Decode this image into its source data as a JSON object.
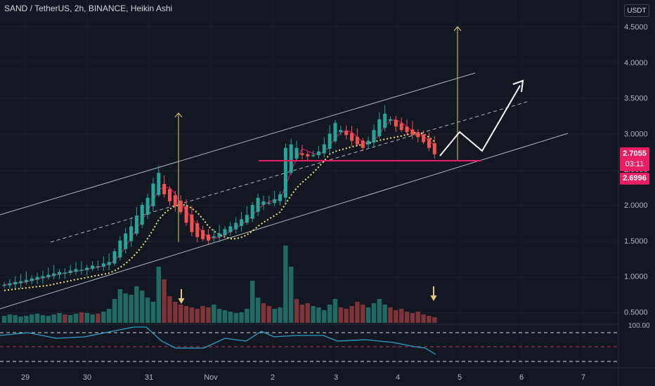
{
  "header": {
    "title": "SAND / TetherUS, 2h, BINANCE, Heikin Ashi",
    "currency": "USDT"
  },
  "price_axis": {
    "ticks": [
      "4.5000",
      "4.0000",
      "3.5000",
      "3.0000",
      "2.5000",
      "2.0000",
      "1.5000",
      "1.0000",
      "0.5000"
    ],
    "last_price": "2.7055",
    "countdown": "03:11",
    "low_price": "2.6996"
  },
  "oscillator": {
    "upper_label": "100.00"
  },
  "time_axis": {
    "labels": [
      "29",
      "30",
      "31",
      "Nov",
      "2",
      "3",
      "4",
      "5",
      "6",
      "7"
    ]
  },
  "colors": {
    "background": "#131722",
    "bull": "#26a69a",
    "bear": "#ef5350",
    "accent": "#e91e63",
    "channel": "#b2b5be",
    "arrow": "#e8c97a",
    "oscillator_line": "#2aa1c8"
  },
  "chart_data": {
    "type": "candlestick",
    "symbol": "SAND / TetherUS",
    "timeframe": "2h",
    "exchange": "BINANCE",
    "style": "Heikin Ashi",
    "y_unit": "USDT",
    "ylim": [
      0.3,
      4.7
    ],
    "x_labels": [
      "29",
      "30",
      "31",
      "Nov",
      "2",
      "3",
      "4",
      "5",
      "6",
      "7"
    ],
    "closes": [
      0.88,
      0.9,
      0.92,
      0.93,
      0.95,
      0.97,
      0.99,
      1.0,
      1.02,
      1.04,
      1.06,
      1.05,
      1.08,
      1.1,
      1.09,
      1.12,
      1.15,
      1.14,
      1.18,
      1.2,
      1.35,
      1.5,
      1.6,
      1.7,
      1.85,
      2.0,
      2.1,
      2.3,
      2.45,
      2.15,
      2.05,
      1.98,
      1.9,
      1.75,
      1.62,
      1.55,
      1.52,
      1.5,
      1.56,
      1.6,
      1.66,
      1.7,
      1.75,
      1.8,
      1.86,
      2.0,
      2.1,
      2.05,
      2.03,
      2.08,
      2.15,
      2.8,
      2.85,
      2.8,
      2.7,
      2.68,
      2.7,
      2.75,
      2.85,
      3.0,
      3.15,
      3.05,
      2.98,
      2.9,
      2.85,
      2.8,
      2.9,
      3.05,
      3.2,
      3.28,
      3.2,
      3.1,
      3.05,
      3.02,
      2.98,
      2.95,
      2.88,
      2.8,
      2.71
    ],
    "last_close": 2.7055,
    "support_level": 2.62,
    "volume_arrows_at": [
      "31",
      "4"
    ],
    "oscillator": {
      "upper": 100.0
    }
  }
}
